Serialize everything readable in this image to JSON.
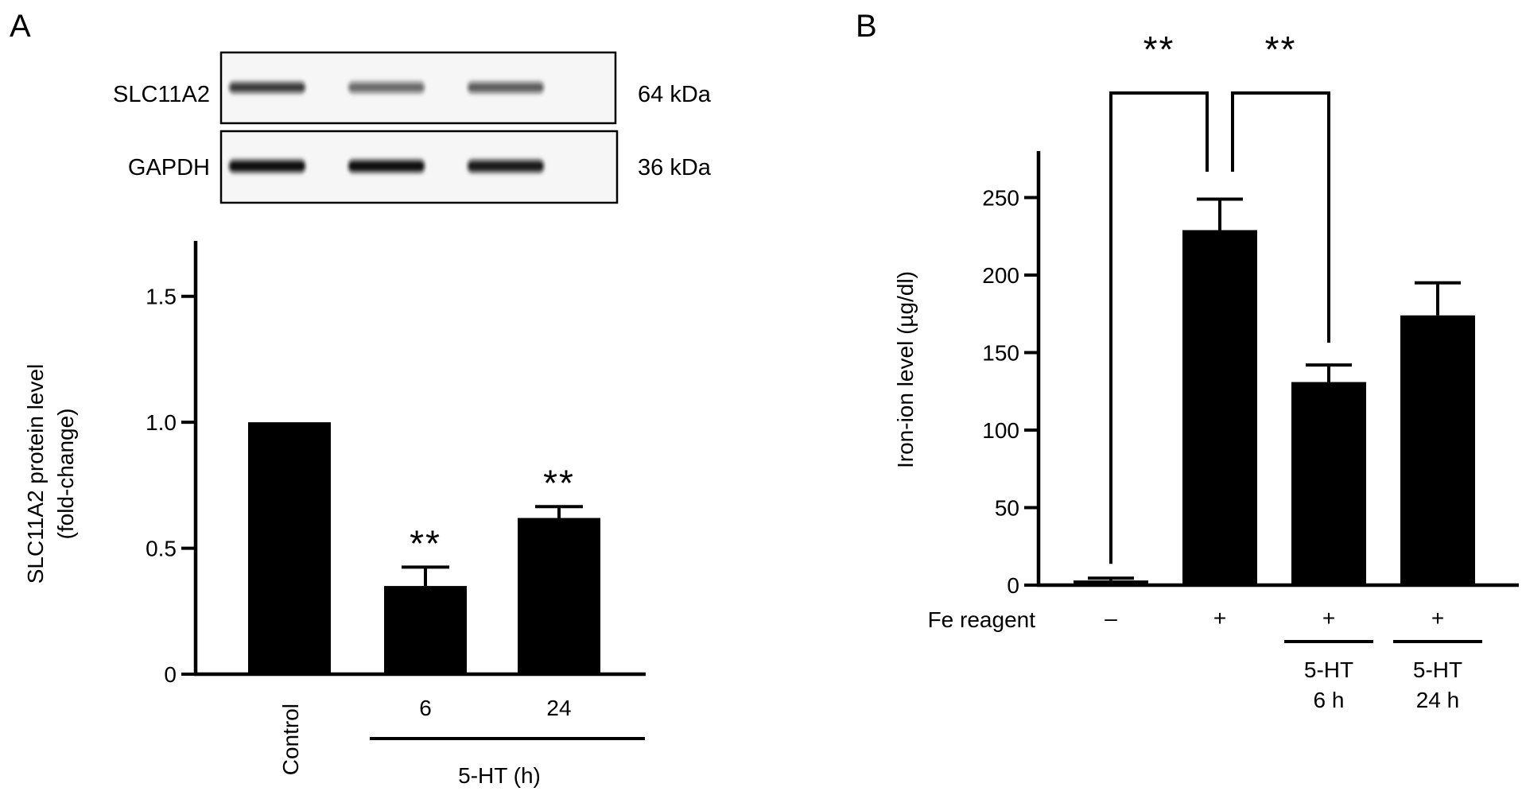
{
  "panels": {
    "a": {
      "letter": "A",
      "blot": {
        "rows": [
          {
            "protein": "SLC11A2",
            "size": "64 kDa",
            "band_intensity": [
              0.82,
              0.62,
              0.68
            ]
          },
          {
            "protein": "GAPDH",
            "size": "36 kDa",
            "band_intensity": [
              1.0,
              1.0,
              0.95
            ]
          }
        ]
      }
    },
    "b": {
      "letter": "B"
    }
  },
  "chart_data": [
    {
      "type": "bar",
      "categories": [
        "Control",
        "6",
        "24"
      ],
      "group_label": "5-HT (h)",
      "values": [
        1.0,
        0.35,
        0.62
      ],
      "error": [
        0.0,
        0.075,
        0.045
      ],
      "significance": [
        "",
        "**",
        "**"
      ],
      "ylabel_lines": [
        "SLC11A2 protein level",
        "(fold-change)"
      ],
      "yticks": [
        0,
        0.5,
        1.0,
        1.5
      ],
      "ytick_labels": [
        "0",
        "0.5",
        "1.0",
        "1.5"
      ],
      "ylim": [
        0,
        1.72
      ],
      "bar_color": "#000000"
    },
    {
      "type": "bar",
      "row_label": "Fe reagent",
      "fe_reagent": [
        "–",
        "+",
        "+",
        "+"
      ],
      "treatment": [
        [],
        [],
        [
          "5-HT",
          "6 h"
        ],
        [
          "5-HT",
          "24 h"
        ]
      ],
      "values": [
        3,
        229,
        131,
        174
      ],
      "error": [
        1.5,
        20,
        11,
        21
      ],
      "significance": [
        {
          "from": 0,
          "to": 1,
          "label": "**"
        },
        {
          "from": 1,
          "to": 2,
          "label": "**"
        }
      ],
      "ylabel": "Iron-ion level (µg/dl)",
      "yticks": [
        0,
        50,
        100,
        150,
        200,
        250
      ],
      "ytick_labels": [
        "0",
        "50",
        "100",
        "150",
        "200",
        "250"
      ],
      "ylim": [
        0,
        280
      ],
      "bar_color": "#000000"
    }
  ]
}
